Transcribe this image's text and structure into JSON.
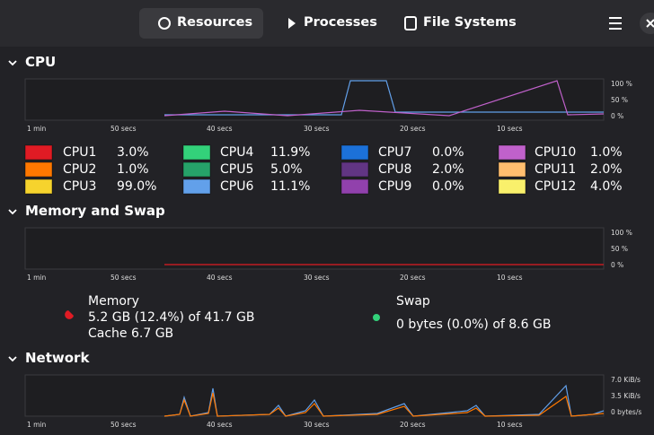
{
  "header": {
    "tabs": [
      "Resources",
      "Processes",
      "File Systems"
    ]
  },
  "time_labels": [
    "1 min",
    "50 secs",
    "40 secs",
    "30 secs",
    "20 secs",
    "10 secs"
  ],
  "cpu": {
    "title": "CPU",
    "y_labels": [
      "100 %",
      "50 %",
      "0 %"
    ],
    "legend": [
      {
        "name": "CPU1",
        "value": "3.0%",
        "color": "#e01b24"
      },
      {
        "name": "CPU2",
        "value": "1.0%",
        "color": "#ff7800"
      },
      {
        "name": "CPU3",
        "value": "99.0%",
        "color": "#f6d32d"
      },
      {
        "name": "CPU4",
        "value": "11.9%",
        "color": "#33d17a"
      },
      {
        "name": "CPU5",
        "value": "5.0%",
        "color": "#26a269"
      },
      {
        "name": "CPU6",
        "value": "11.1%",
        "color": "#62a0ea"
      },
      {
        "name": "CPU7",
        "value": "0.0%",
        "color": "#1c71d8"
      },
      {
        "name": "CPU8",
        "value": "2.0%",
        "color": "#613583"
      },
      {
        "name": "CPU9",
        "value": "0.0%",
        "color": "#9141ac"
      },
      {
        "name": "CPU10",
        "value": "1.0%",
        "color": "#c061cb"
      },
      {
        "name": "CPU11",
        "value": "2.0%",
        "color": "#ffbe6f"
      },
      {
        "name": "CPU12",
        "value": "4.0%",
        "color": "#f9f06b"
      }
    ]
  },
  "memory": {
    "title": "Memory and Swap",
    "y_labels": [
      "100 %",
      "50 %",
      "0 %"
    ],
    "memory_label": "Memory",
    "memory_usage": "5.2 GB (12.4%) of 41.7 GB",
    "cache": "Cache 6.7 GB",
    "swap_label": "Swap",
    "swap_usage": "0 bytes (0.0%) of 8.6 GB"
  },
  "network": {
    "title": "Network",
    "y_labels": [
      "7.0 KiB/s",
      "3.5 KiB/s",
      "0 bytes/s"
    ]
  }
}
